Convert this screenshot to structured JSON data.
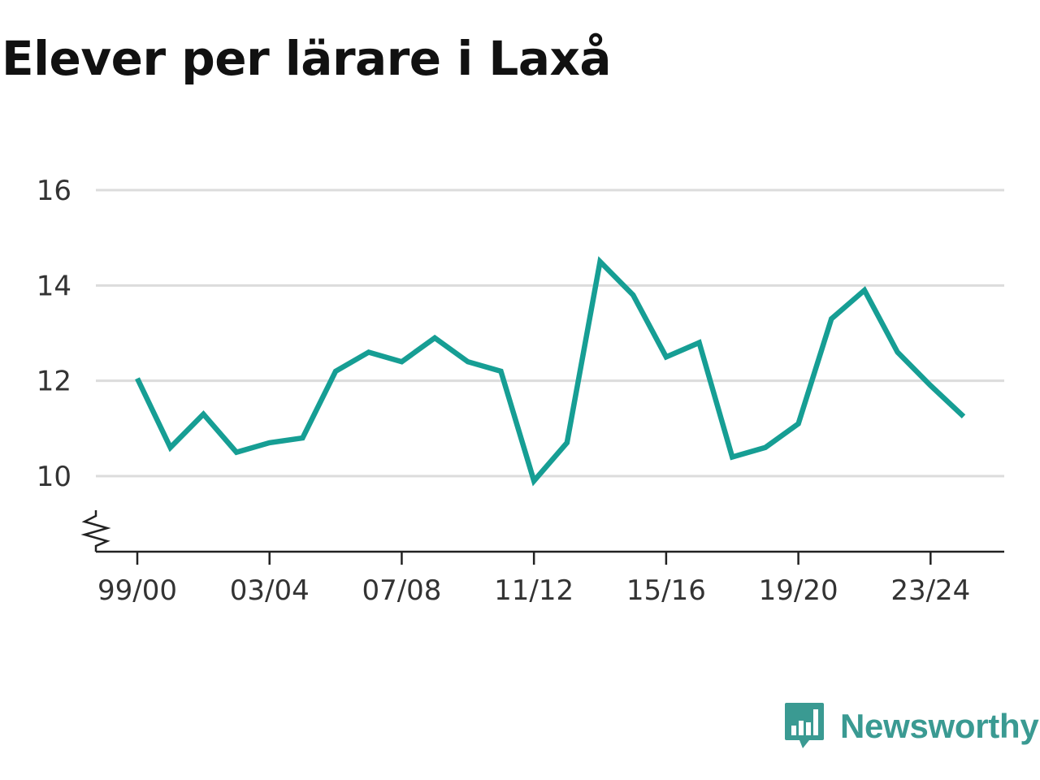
{
  "chart_data": {
    "type": "line",
    "title": "Elever per lärare i Laxå",
    "x": [
      "99/00",
      "00/01",
      "01/02",
      "02/03",
      "03/04",
      "04/05",
      "05/06",
      "06/07",
      "07/08",
      "08/09",
      "09/10",
      "10/11",
      "11/12",
      "12/13",
      "13/14",
      "14/15",
      "15/16",
      "16/17",
      "17/18",
      "18/19",
      "19/20",
      "20/21",
      "21/22",
      "22/23",
      "23/24",
      "24/25"
    ],
    "series": [
      {
        "values": [
          12.05,
          10.6,
          11.3,
          10.5,
          10.7,
          10.8,
          12.2,
          12.6,
          12.4,
          12.9,
          12.4,
          12.2,
          9.9,
          10.7,
          14.5,
          13.8,
          12.5,
          12.8,
          10.4,
          10.6,
          11.1,
          13.3,
          13.9,
          12.6,
          11.9,
          11.25
        ],
        "color": "#169e94"
      }
    ],
    "x_tick_labels": [
      "99/00",
      "03/04",
      "07/08",
      "11/12",
      "15/16",
      "19/20",
      "23/24"
    ],
    "y_ticks": [
      10,
      12,
      14,
      16
    ],
    "ylim": [
      8.4,
      16
    ],
    "y_axis_break": true,
    "grid": true,
    "xlabel": "",
    "ylabel": ""
  },
  "brand": {
    "name": "Newsworthy",
    "color": "#3a9a92",
    "icon": "newsworthy-logo-icon"
  }
}
